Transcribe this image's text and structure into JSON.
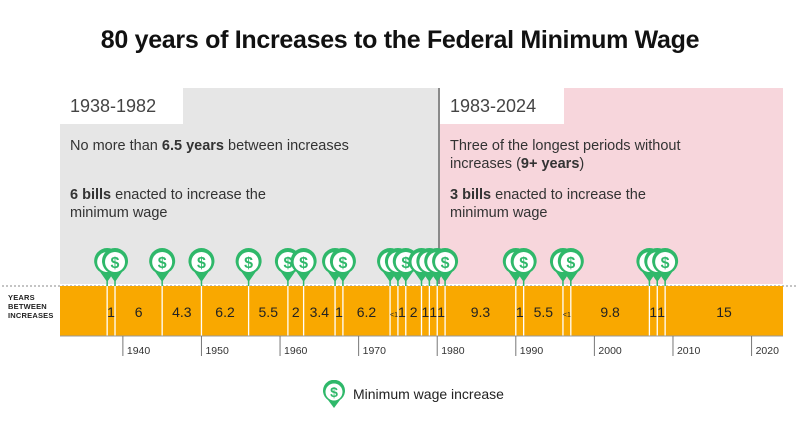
{
  "title": "80 years of Increases to the Federal Minimum Wage",
  "left_panel": {
    "period": "1938-1982",
    "desc1_pre": "No more than ",
    "desc1_bold": "6.5 years",
    "desc1_post": " between increases",
    "desc2_bold": "6 bills",
    "desc2_post": " enacted to increase the",
    "desc2_line2": "minimum wage"
  },
  "right_panel": {
    "period": "1983-2024",
    "desc1_line1": "Three of the longest periods without",
    "desc1_pre": "increases (",
    "desc1_bold": "9+ years",
    "desc1_post": ")",
    "desc2_bold": "3 bills",
    "desc2_post": " enacted to increase the",
    "desc2_line2": "minimum wage"
  },
  "axis_label": [
    "YEARS",
    "BETWEEN",
    "INCREASES"
  ],
  "legend": {
    "label": "Minimum wage increase",
    "icon": "dollar-pin-icon"
  },
  "colors": {
    "bar": "#f9a800",
    "accent": "#2fb86a",
    "left_panel": "#e6e6e6",
    "right_panel": "#f7d6dc"
  },
  "chart_data": {
    "type": "timeline",
    "x_range": [
      1932,
      2024
    ],
    "increases": [
      1938,
      1939,
      1945,
      1950,
      1956,
      1961,
      1963,
      1967,
      1968,
      1974,
      1975,
      1976,
      1978,
      1979,
      1980,
      1981,
      1990,
      1991,
      1996,
      1997,
      2007,
      2008,
      2009
    ],
    "gaps": [
      "1",
      "6",
      "4.3",
      "6.2",
      "5.5",
      "2",
      "3.4",
      "1",
      "6.2",
      "<1",
      "1",
      "2",
      "1",
      "1",
      "1",
      "9.3",
      "1",
      "5.5",
      "<1",
      "9.8",
      "1",
      "1",
      "15"
    ],
    "tick_labels": [
      "1940",
      "1950",
      "1960",
      "1970",
      "1980",
      "1990",
      "2000",
      "2010",
      "2020"
    ],
    "tick_values": [
      1940,
      1950,
      1960,
      1970,
      1980,
      1990,
      2000,
      2010,
      2020
    ]
  }
}
